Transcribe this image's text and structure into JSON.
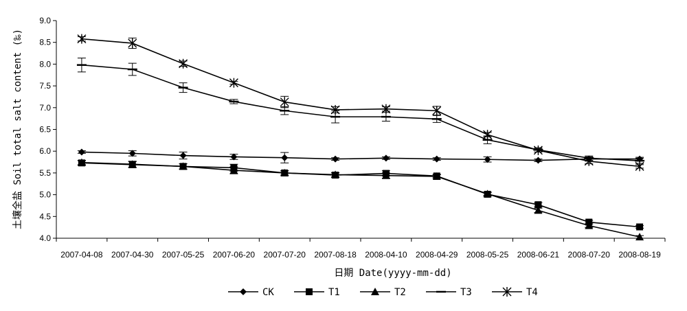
{
  "chart_data": {
    "type": "line",
    "xlabel": "日期 Date(yyyy-mm-dd)",
    "ylabel": "土壤全盐 Soil total salt content (‰)",
    "ylim": [
      4.0,
      9.0
    ],
    "ytick_step": 0.5,
    "yticks": [
      "4.0",
      "4.5",
      "5.0",
      "5.5",
      "6.0",
      "6.5",
      "7.0",
      "7.5",
      "8.0",
      "8.5",
      "9.0"
    ],
    "categories": [
      "2007-04-08",
      "2007-04-30",
      "2007-05-25",
      "2007-06-20",
      "2007-07-20",
      "2007-08-18",
      "2008-04-10",
      "2008-04-29",
      "2008-05-25",
      "2008-06-21",
      "2008-07-20",
      "2008-08-19"
    ],
    "grid": false,
    "legend_position": "bottom",
    "series": [
      {
        "name": "CK",
        "marker": "diamond",
        "values": [
          5.98,
          5.95,
          5.9,
          5.87,
          5.85,
          5.82,
          5.84,
          5.82,
          5.81,
          5.79,
          5.82,
          5.82
        ],
        "errors": [
          0.03,
          0.06,
          0.08,
          0.06,
          0.12,
          0.03,
          0.03,
          0.03,
          0.06,
          0.03,
          0.05,
          0.04
        ]
      },
      {
        "name": "T1",
        "marker": "square",
        "values": [
          5.73,
          5.69,
          5.65,
          5.62,
          5.5,
          5.45,
          5.49,
          5.43,
          5.01,
          4.77,
          4.37,
          4.26
        ],
        "errors": [
          0.05,
          0.07,
          0.06,
          0.08,
          0.05,
          0.05,
          0.06,
          0.04,
          0.04,
          0.05,
          0.04,
          0.03
        ]
      },
      {
        "name": "T2",
        "marker": "triangle",
        "values": [
          5.74,
          5.7,
          5.65,
          5.56,
          5.5,
          5.46,
          5.44,
          5.42,
          5.02,
          4.64,
          4.29,
          4.03
        ],
        "errors": [
          0.05,
          0.07,
          0.06,
          0.08,
          0.05,
          0.05,
          0.06,
          0.04,
          0.04,
          0.05,
          0.04,
          0.03
        ]
      },
      {
        "name": "T3",
        "marker": "dash",
        "values": [
          7.98,
          7.88,
          7.46,
          7.14,
          6.93,
          6.79,
          6.79,
          6.74,
          6.26,
          6.03,
          5.84,
          5.78
        ],
        "errors": [
          0.16,
          0.14,
          0.11,
          0.05,
          0.09,
          0.14,
          0.1,
          0.08,
          0.09,
          0.05,
          0.05,
          0.06
        ]
      },
      {
        "name": "T4",
        "marker": "star",
        "values": [
          8.58,
          8.48,
          8.01,
          7.57,
          7.13,
          6.95,
          6.97,
          6.93,
          6.38,
          6.02,
          5.77,
          5.65
        ],
        "errors": [
          0.05,
          0.12,
          0.06,
          0.03,
          0.13,
          0.07,
          0.05,
          0.1,
          0.05,
          0.04,
          0.06,
          0.04
        ]
      }
    ]
  }
}
